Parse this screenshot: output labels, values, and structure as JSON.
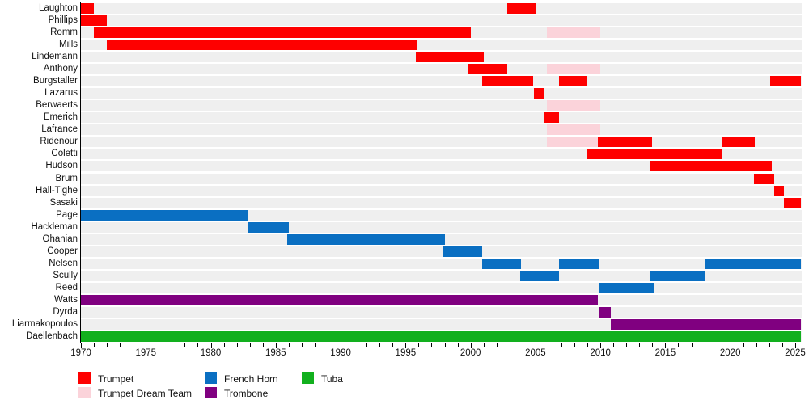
{
  "chart_data": {
    "type": "bar",
    "subtype": "gantt-member-timeline",
    "x_axis": {
      "min": 1970,
      "max": 2025.5,
      "major_tick_years": [
        1970,
        1975,
        1980,
        1985,
        1990,
        1995,
        2000,
        2005,
        2010,
        2015,
        2020,
        2025
      ],
      "major_tick_labels": [
        "1970",
        "1975",
        "1980",
        "1985",
        "1990",
        "1995",
        "2000",
        "2005",
        "2010",
        "2015",
        "2020",
        "2025"
      ],
      "minor_tick_step": 1,
      "grid": false
    },
    "present_end": 2025.45,
    "legend": {
      "position": "bottom",
      "items": [
        {
          "label": "Trumpet",
          "key": "trumpet"
        },
        {
          "label": "Trumpet Dream Team",
          "key": "dream_team"
        },
        {
          "label": "French Horn",
          "key": "french_horn"
        },
        {
          "label": "Trombone",
          "key": "trombone"
        },
        {
          "label": "Tuba",
          "key": "tuba"
        }
      ]
    },
    "colors": {
      "trumpet": "#fe0000",
      "dream_team": "#fbd3da",
      "french_horn": "#0a6fc2",
      "trombone": "#800080",
      "tuba": "#12b01e",
      "row_stripe": "#efefef",
      "axis": "#000000",
      "text": "#111111"
    },
    "members": [
      {
        "name": "Laughton",
        "instrument": "trumpet",
        "periods": [
          {
            "start": 1970,
            "end": 1971,
            "type": "trumpet"
          },
          {
            "start": 2002.8,
            "end": 2005,
            "type": "trumpet"
          }
        ]
      },
      {
        "name": "Phillips",
        "instrument": "trumpet",
        "periods": [
          {
            "start": 1970,
            "end": 1972,
            "type": "trumpet"
          }
        ]
      },
      {
        "name": "Romm",
        "instrument": "trumpet",
        "periods": [
          {
            "start": 1971,
            "end": 2000,
            "type": "trumpet"
          },
          {
            "start": 2005.9,
            "end": 2010,
            "type": "dream_team"
          }
        ]
      },
      {
        "name": "Mills",
        "instrument": "trumpet",
        "periods": [
          {
            "start": 1972,
            "end": 1995.9,
            "type": "trumpet"
          }
        ]
      },
      {
        "name": "Lindemann",
        "instrument": "trumpet",
        "periods": [
          {
            "start": 1995.8,
            "end": 2001,
            "type": "trumpet"
          }
        ]
      },
      {
        "name": "Anthony",
        "instrument": "trumpet",
        "periods": [
          {
            "start": 1999.8,
            "end": 2002.8,
            "type": "trumpet"
          },
          {
            "start": 2005.9,
            "end": 2010,
            "type": "dream_team"
          }
        ]
      },
      {
        "name": "Burgstaller",
        "instrument": "trumpet",
        "periods": [
          {
            "start": 2000.9,
            "end": 2004.8,
            "type": "trumpet"
          },
          {
            "start": 2006.8,
            "end": 2009,
            "type": "trumpet"
          },
          {
            "start": 2023.1,
            "end": "present",
            "type": "trumpet"
          }
        ]
      },
      {
        "name": "Lazarus",
        "instrument": "trumpet",
        "periods": [
          {
            "start": 2004.9,
            "end": 2005.6,
            "type": "trumpet"
          }
        ]
      },
      {
        "name": "Berwaerts",
        "instrument": "trumpet",
        "periods": [
          {
            "start": 2005.9,
            "end": 2010,
            "type": "dream_team"
          }
        ]
      },
      {
        "name": "Emerich",
        "instrument": "trumpet",
        "periods": [
          {
            "start": 2005.6,
            "end": 2006.8,
            "type": "trumpet"
          }
        ]
      },
      {
        "name": "Lafrance",
        "instrument": "trumpet",
        "periods": [
          {
            "start": 2005.9,
            "end": 2010,
            "type": "dream_team"
          }
        ]
      },
      {
        "name": "Ridenour",
        "instrument": "trumpet",
        "periods": [
          {
            "start": 2005.9,
            "end": 2010,
            "type": "dream_team"
          },
          {
            "start": 2009.8,
            "end": 2014,
            "type": "trumpet"
          },
          {
            "start": 2019.4,
            "end": 2021.9,
            "type": "trumpet"
          }
        ]
      },
      {
        "name": "Coletti",
        "instrument": "trumpet",
        "periods": [
          {
            "start": 2008.9,
            "end": 2019.4,
            "type": "trumpet"
          }
        ]
      },
      {
        "name": "Hudson",
        "instrument": "trumpet",
        "periods": [
          {
            "start": 2013.8,
            "end": 2023.2,
            "type": "trumpet"
          }
        ]
      },
      {
        "name": "Brum",
        "instrument": "trumpet",
        "periods": [
          {
            "start": 2021.8,
            "end": 2023.4,
            "type": "trumpet"
          }
        ]
      },
      {
        "name": "Hall-Tighe",
        "instrument": "trumpet",
        "periods": [
          {
            "start": 2023.4,
            "end": 2024.1,
            "type": "trumpet"
          }
        ]
      },
      {
        "name": "Sasaki",
        "instrument": "trumpet",
        "periods": [
          {
            "start": 2024.1,
            "end": "present",
            "type": "trumpet"
          }
        ]
      },
      {
        "name": "Page",
        "instrument": "french_horn",
        "periods": [
          {
            "start": 1970,
            "end": 1982.9,
            "type": "french_horn"
          }
        ]
      },
      {
        "name": "Hackleman",
        "instrument": "french_horn",
        "periods": [
          {
            "start": 1982.9,
            "end": 1986,
            "type": "french_horn"
          }
        ]
      },
      {
        "name": "Ohanian",
        "instrument": "french_horn",
        "periods": [
          {
            "start": 1985.9,
            "end": 1998,
            "type": "french_horn"
          }
        ]
      },
      {
        "name": "Cooper",
        "instrument": "french_horn",
        "periods": [
          {
            "start": 1997.9,
            "end": 2000.9,
            "type": "french_horn"
          }
        ]
      },
      {
        "name": "Nelsen",
        "instrument": "french_horn",
        "periods": [
          {
            "start": 2000.9,
            "end": 2003.9,
            "type": "french_horn"
          },
          {
            "start": 2006.8,
            "end": 2009.9,
            "type": "french_horn"
          },
          {
            "start": 2018,
            "end": "present",
            "type": "french_horn"
          }
        ]
      },
      {
        "name": "Scully",
        "instrument": "french_horn",
        "periods": [
          {
            "start": 2003.8,
            "end": 2006.8,
            "type": "french_horn"
          },
          {
            "start": 2013.8,
            "end": 2018.1,
            "type": "french_horn"
          }
        ]
      },
      {
        "name": "Reed",
        "instrument": "french_horn",
        "periods": [
          {
            "start": 2009.9,
            "end": 2014.1,
            "type": "french_horn"
          }
        ]
      },
      {
        "name": "Watts",
        "instrument": "trombone",
        "periods": [
          {
            "start": 1970,
            "end": 2009.8,
            "type": "trombone"
          }
        ]
      },
      {
        "name": "Dyrda",
        "instrument": "trombone",
        "periods": [
          {
            "start": 2009.9,
            "end": 2010.8,
            "type": "trombone"
          }
        ]
      },
      {
        "name": "Liarmakopoulos",
        "instrument": "trombone",
        "periods": [
          {
            "start": 2010.8,
            "end": "present",
            "type": "trombone"
          }
        ]
      },
      {
        "name": "Daellenbach",
        "instrument": "tuba",
        "periods": [
          {
            "start": 1970,
            "end": "present",
            "type": "tuba"
          }
        ]
      }
    ]
  }
}
